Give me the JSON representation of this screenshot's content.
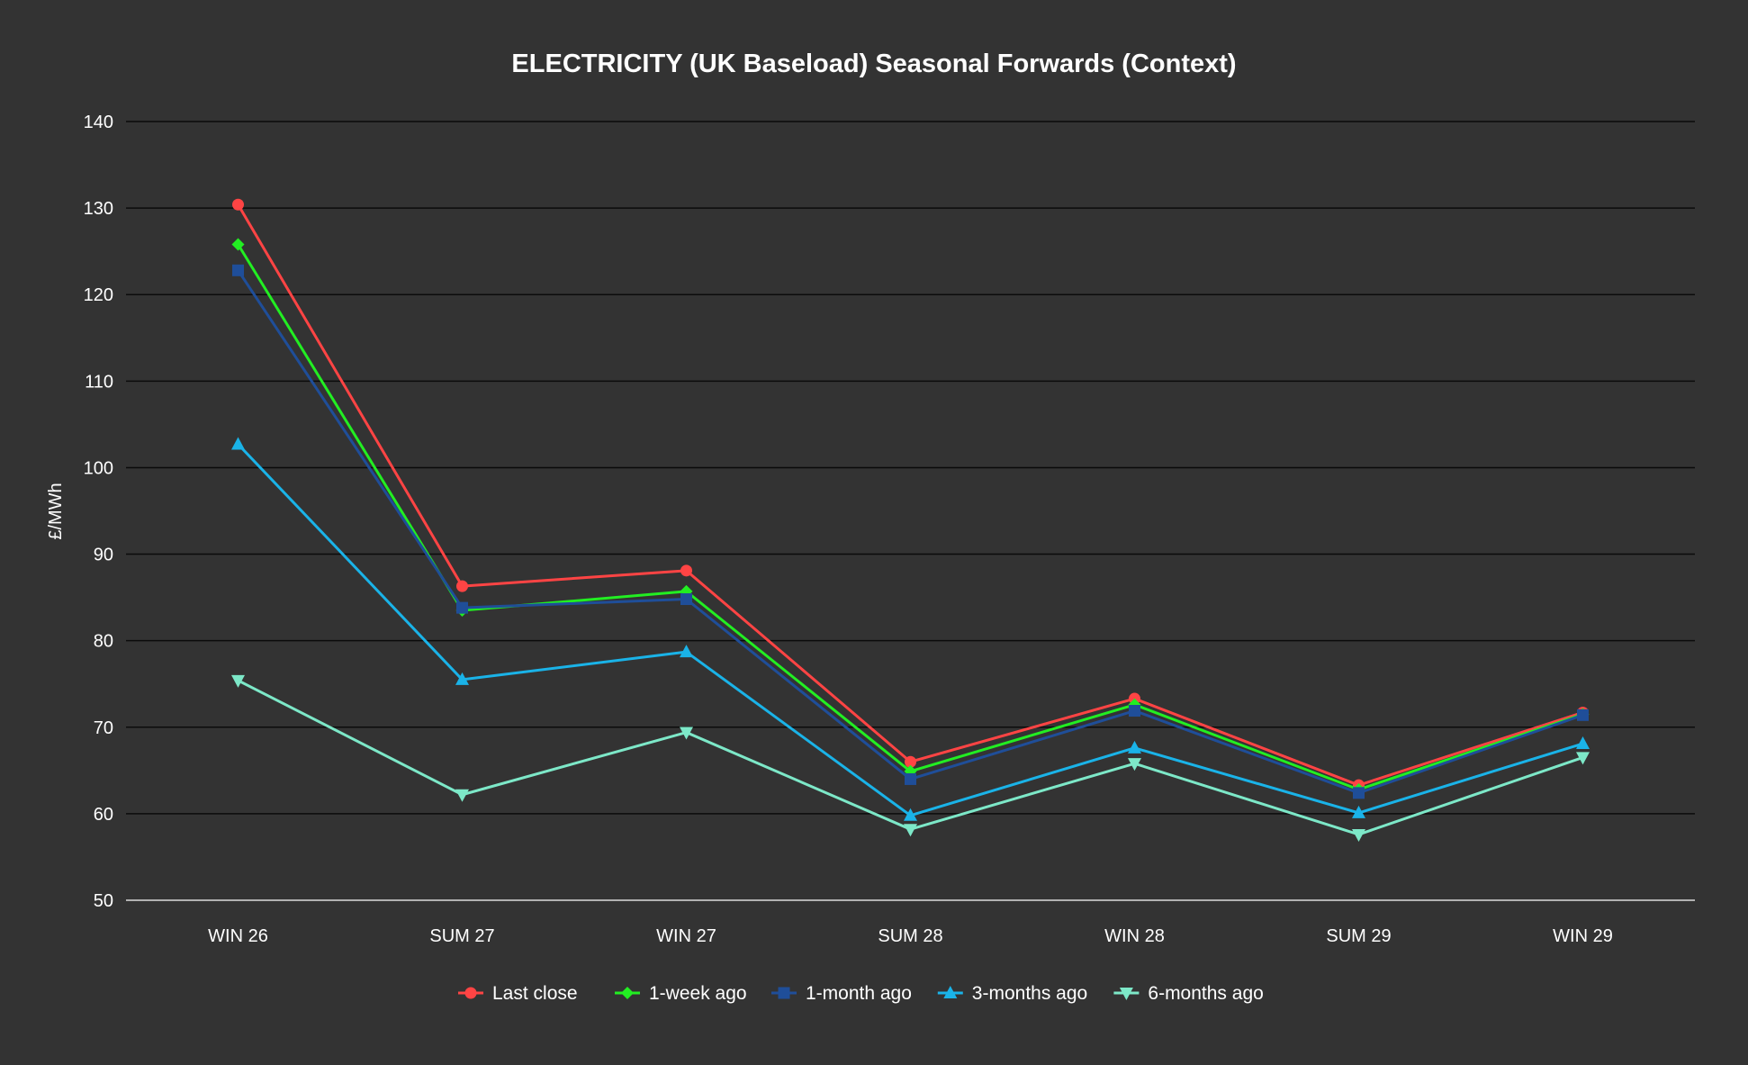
{
  "chart_data": {
    "type": "line",
    "title": "ELECTRICITY (UK Baseload) Seasonal Forwards (Context)",
    "xlabel": "",
    "ylabel": "£/MWh",
    "ylim": [
      50,
      140
    ],
    "yticks": [
      50,
      60,
      70,
      80,
      90,
      100,
      110,
      120,
      130,
      140
    ],
    "grid": true,
    "legend_position": "bottom",
    "categories": [
      "WIN 26",
      "SUM 27",
      "WIN 27",
      "SUM 28",
      "WIN 28",
      "SUM 29",
      "WIN 29"
    ],
    "series": [
      {
        "name": "Last close",
        "color": "#ff4444",
        "marker": "circle",
        "values": [
          130.4,
          86.3,
          88.1,
          66.0,
          73.3,
          63.3,
          71.7
        ]
      },
      {
        "name": "1-week ago",
        "color": "#22ee22",
        "marker": "diamond",
        "values": [
          125.8,
          83.5,
          85.7,
          64.9,
          72.6,
          62.8,
          71.5
        ]
      },
      {
        "name": "1-month ago",
        "color": "#1f4e99",
        "marker": "square",
        "values": [
          122.8,
          83.8,
          84.8,
          64.0,
          71.9,
          62.4,
          71.4
        ]
      },
      {
        "name": "3-months ago",
        "color": "#1ab3e8",
        "marker": "triangle-up",
        "values": [
          102.7,
          75.5,
          78.7,
          59.8,
          67.6,
          60.1,
          68.1
        ]
      },
      {
        "name": "6-months ago",
        "color": "#7de8c8",
        "marker": "triangle-down",
        "values": [
          75.4,
          62.2,
          69.4,
          58.2,
          65.8,
          57.6,
          66.5
        ]
      }
    ]
  }
}
